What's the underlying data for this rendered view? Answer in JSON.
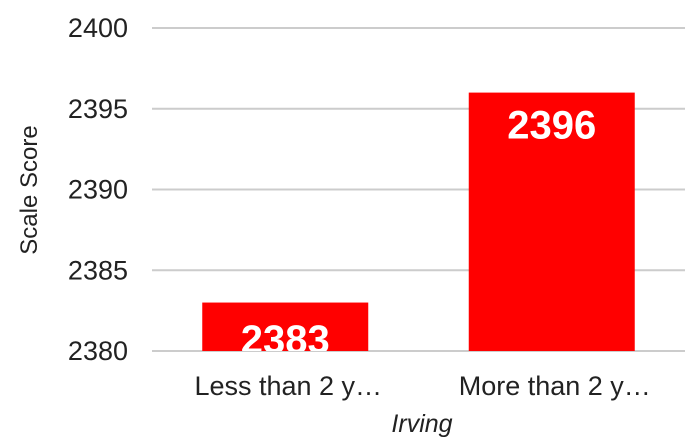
{
  "chart_data": {
    "type": "bar",
    "categories": [
      "Less than 2 y…",
      "More than 2 y…"
    ],
    "values": [
      2383,
      2396
    ],
    "data_labels": [
      "2383",
      "2396"
    ],
    "ylabel": "Scale  Score",
    "xlabel": "Irving",
    "ylim": [
      2380,
      2400
    ],
    "yticks": [
      2380,
      2385,
      2390,
      2395,
      2400
    ],
    "ytick_labels": [
      "2380",
      "2385",
      "2390",
      "2395",
      "2400"
    ],
    "grid": true,
    "legend": "none",
    "colors": {
      "bar": "#ff0000",
      "grid": "#cccccc",
      "text": "#222222",
      "data_label": "#ffffff"
    }
  }
}
